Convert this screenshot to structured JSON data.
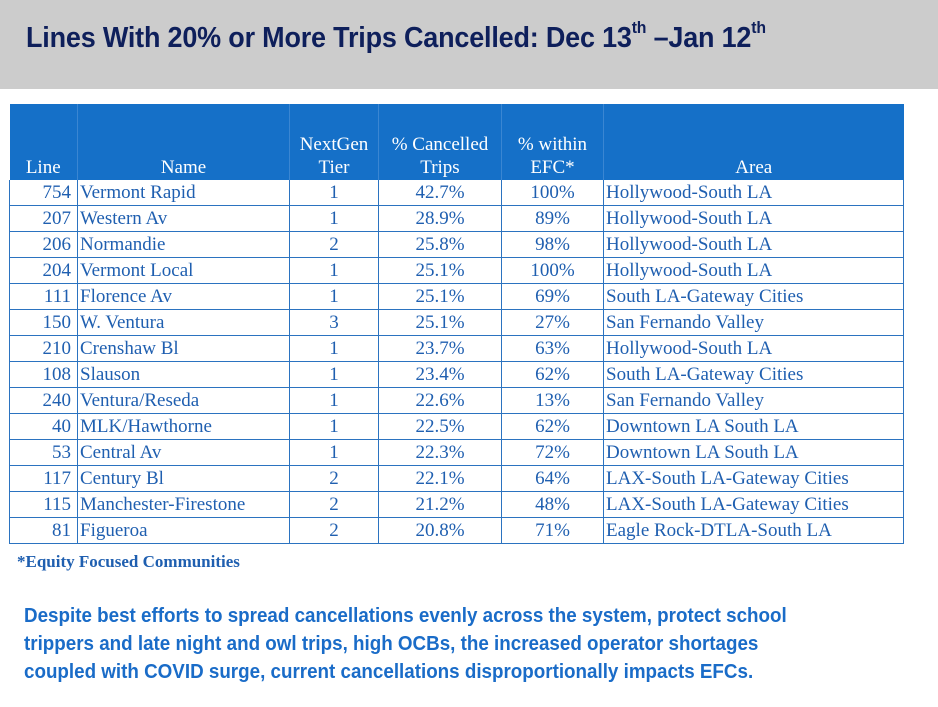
{
  "title": {
    "text": "Lines With 20% or More Trips Cancelled: Dec 13",
    "sup1": "th",
    "middle": " –Jan 12",
    "sup2": "th"
  },
  "table": {
    "headers": {
      "line": "Line",
      "name": "Name",
      "tier_top": "NextGen",
      "tier_bottom": "Tier",
      "cancelled_top": "% Cancelled",
      "cancelled_bottom": "Trips",
      "efc_top": "% within",
      "efc_bottom": "EFC*",
      "area": "Area"
    },
    "rows": [
      {
        "line": "754",
        "name": "Vermont Rapid",
        "tier": "1",
        "cancelled": "42.7%",
        "efc": "100%",
        "area": "Hollywood-South LA"
      },
      {
        "line": "207",
        "name": "Western Av",
        "tier": "1",
        "cancelled": "28.9%",
        "efc": "89%",
        "area": "Hollywood-South LA"
      },
      {
        "line": "206",
        "name": "Normandie",
        "tier": "2",
        "cancelled": "25.8%",
        "efc": "98%",
        "area": "Hollywood-South LA"
      },
      {
        "line": "204",
        "name": "Vermont Local",
        "tier": "1",
        "cancelled": "25.1%",
        "efc": "100%",
        "area": "Hollywood-South LA"
      },
      {
        "line": "111",
        "name": "Florence Av",
        "tier": "1",
        "cancelled": "25.1%",
        "efc": "69%",
        "area": "South LA-Gateway Cities"
      },
      {
        "line": "150",
        "name": "W. Ventura",
        "tier": "3",
        "cancelled": "25.1%",
        "efc": "27%",
        "area": "San Fernando Valley"
      },
      {
        "line": "210",
        "name": "Crenshaw Bl",
        "tier": "1",
        "cancelled": "23.7%",
        "efc": "63%",
        "area": "Hollywood-South LA"
      },
      {
        "line": "108",
        "name": "Slauson",
        "tier": "1",
        "cancelled": "23.4%",
        "efc": "62%",
        "area": "South LA-Gateway Cities"
      },
      {
        "line": "240",
        "name": "Ventura/Reseda",
        "tier": "1",
        "cancelled": "22.6%",
        "efc": "13%",
        "area": "San Fernando Valley"
      },
      {
        "line": "40",
        "name": "MLK/Hawthorne",
        "tier": "1",
        "cancelled": "22.5%",
        "efc": "62%",
        "area": "Downtown LA South LA"
      },
      {
        "line": "53",
        "name": "Central Av",
        "tier": "1",
        "cancelled": "22.3%",
        "efc": "72%",
        "area": "Downtown LA South LA"
      },
      {
        "line": "117",
        "name": "Century Bl",
        "tier": "2",
        "cancelled": "22.1%",
        "efc": "64%",
        "area": "LAX-South LA-Gateway Cities"
      },
      {
        "line": "115",
        "name": "Manchester-Firestone",
        "tier": "2",
        "cancelled": "21.2%",
        "efc": "48%",
        "area": "LAX-South LA-Gateway Cities"
      },
      {
        "line": "81",
        "name": "Figueroa",
        "tier": "2",
        "cancelled": "20.8%",
        "efc": "71%",
        "area": "Eagle Rock-DTLA-South LA"
      }
    ]
  },
  "footnote": "*Equity Focused Communities",
  "summary": {
    "line1": "Despite best efforts to spread cancellations evenly across the system, protect school",
    "line2": "trippers and late night and owl trips, high OCBs, the increased operator shortages",
    "line3": "coupled with COVID surge, current cancellations disproportionally impacts EFCs."
  },
  "colors": {
    "header_bg": "#1570c8",
    "title_band": "#cccccc",
    "title_text": "#0e1f5b",
    "cell_text": "#1f5fb0",
    "summary_text": "#1a6cc8"
  }
}
